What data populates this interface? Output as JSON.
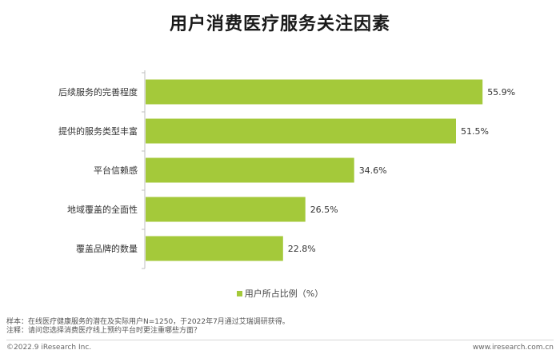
{
  "page": {
    "title": "用户消费医疗服务关注因素",
    "legend_label": "用户所占比例（%）",
    "footnote_sample": "样本：在线医疗健康服务的潜在及实际用户N=1250，于2022年7月通过艾瑞调研获得。",
    "footnote_note": "注释：请问您选择消费医疗线上预约平台时更注重哪些方面？",
    "copyright": "©2022.9 iResearch Inc.",
    "website": "www.iresearch.com.cn"
  },
  "colors": {
    "bar": "#a4c93a",
    "axis": "#bfbfbf",
    "text": "#333333"
  },
  "chart_data": {
    "type": "bar",
    "orientation": "horizontal",
    "title": "用户消费医疗服务关注因素",
    "categories": [
      "后续服务的完善程度",
      "提供的服务类型丰富",
      "平台信赖感",
      "地域覆盖的全面性",
      "覆盖品牌的数量"
    ],
    "series": [
      {
        "name": "用户所占比例（%）",
        "values": [
          55.9,
          51.5,
          34.6,
          26.5,
          22.8
        ]
      }
    ],
    "value_suffix": "%",
    "xlim": [
      0,
      58
    ],
    "legend_position": "bottom",
    "grid": false
  }
}
